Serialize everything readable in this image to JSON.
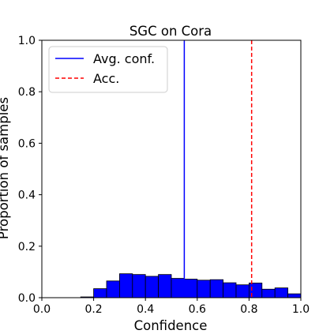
{
  "chart_data": {
    "type": "bar",
    "title": "SGC on Cora",
    "xlabel": "Confidence",
    "ylabel": "Proportion of samples",
    "xlim": [
      0.0,
      1.0
    ],
    "ylim": [
      0.0,
      1.0
    ],
    "xticks": [
      "0.0",
      "0.2",
      "0.4",
      "0.6",
      "0.8",
      "1.0"
    ],
    "yticks": [
      "0.0",
      "0.2",
      "0.4",
      "0.6",
      "0.8",
      "1.0"
    ],
    "grid": false,
    "legend_position": "top-left",
    "bin_width": 0.05,
    "bins": [
      {
        "x0": 0.15,
        "value": 0.003
      },
      {
        "x0": 0.2,
        "value": 0.035
      },
      {
        "x0": 0.25,
        "value": 0.065
      },
      {
        "x0": 0.3,
        "value": 0.093
      },
      {
        "x0": 0.35,
        "value": 0.09
      },
      {
        "x0": 0.4,
        "value": 0.083
      },
      {
        "x0": 0.45,
        "value": 0.09
      },
      {
        "x0": 0.5,
        "value": 0.075
      },
      {
        "x0": 0.55,
        "value": 0.072
      },
      {
        "x0": 0.6,
        "value": 0.068
      },
      {
        "x0": 0.65,
        "value": 0.07
      },
      {
        "x0": 0.7,
        "value": 0.058
      },
      {
        "x0": 0.75,
        "value": 0.05
      },
      {
        "x0": 0.8,
        "value": 0.057
      },
      {
        "x0": 0.85,
        "value": 0.033
      },
      {
        "x0": 0.9,
        "value": 0.038
      },
      {
        "x0": 0.95,
        "value": 0.015
      }
    ],
    "bar_color": "#0000ff",
    "reference_lines": [
      {
        "name": "Avg. conf.",
        "x": 0.55,
        "color": "#0000ff",
        "style": "solid"
      },
      {
        "name": "Acc.",
        "x": 0.81,
        "color": "#ff0000",
        "style": "dashed"
      }
    ]
  }
}
